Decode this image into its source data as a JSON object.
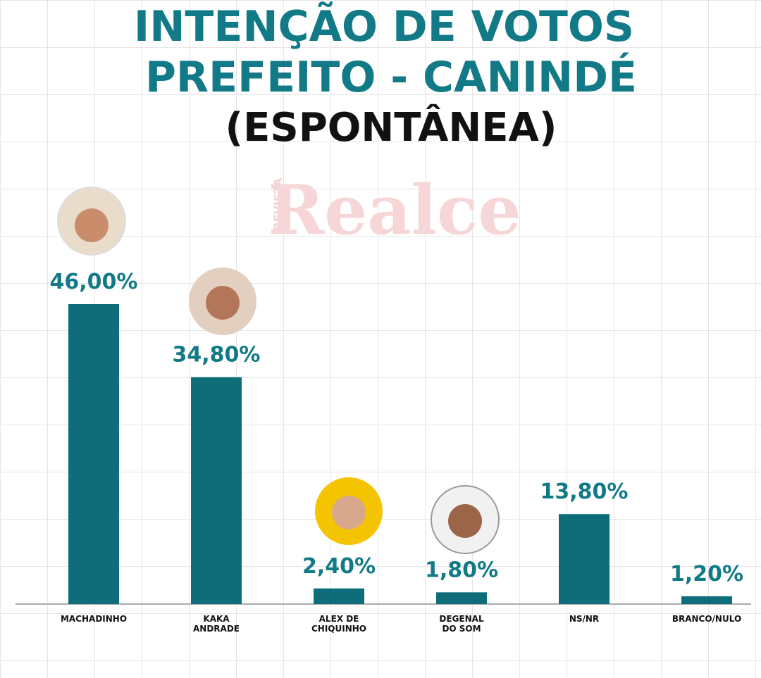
{
  "chart_data": {
    "type": "bar",
    "title": [
      "INTENÇÃO DE VOTOS",
      "PREFEITO - CANINDÉ",
      "(ESPONTÂNEA)"
    ],
    "watermark": {
      "prefix": "REVISTA",
      "name": "Realce"
    },
    "categories": [
      "MACHADINHO",
      "KAKA\nANDRADE",
      "ALEX DE\nCHIQUINHO",
      "DEGENAL\nDO SOM",
      "NS/NR",
      "BRANCO/NULO"
    ],
    "values": [
      46,
      34.8,
      2.4,
      1.8,
      13.8,
      1.2
    ],
    "value_labels": [
      "46,00%",
      "34,80%",
      "2,40%",
      "1,80%",
      "13,80%",
      "1,20%"
    ],
    "color": "#0e6d78"
  }
}
